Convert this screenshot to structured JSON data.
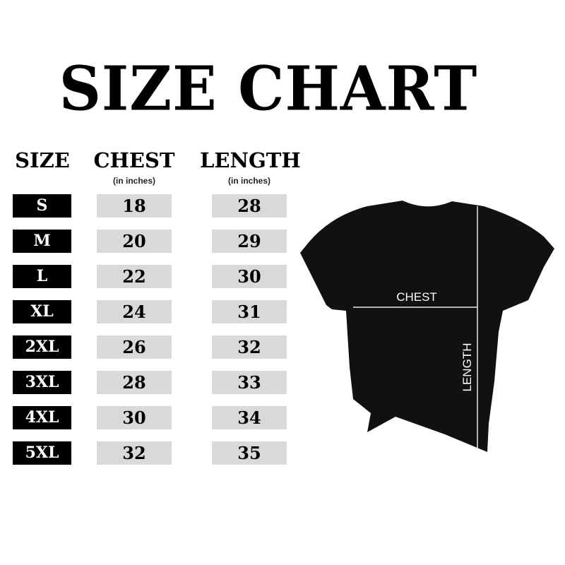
{
  "title": "SIZE CHART",
  "headers": {
    "size": "SIZE",
    "chest": "CHEST",
    "chest_unit": "(in inches)",
    "length": "LENGTH",
    "length_unit": "(in inches)"
  },
  "rows": [
    {
      "size": "S",
      "chest": "18",
      "length": "28"
    },
    {
      "size": "M",
      "chest": "20",
      "length": "29"
    },
    {
      "size": "L",
      "chest": "22",
      "length": "30"
    },
    {
      "size": "XL",
      "chest": "24",
      "length": "31"
    },
    {
      "size": "2XL",
      "chest": "26",
      "length": "32"
    },
    {
      "size": "3XL",
      "chest": "28",
      "length": "33"
    },
    {
      "size": "4XL",
      "chest": "30",
      "length": "34"
    },
    {
      "size": "5XL",
      "chest": "32",
      "length": "35"
    }
  ],
  "diagram": {
    "chest_label": "CHEST",
    "length_label": "LENGTH"
  },
  "colors": {
    "size_cell": "#000000",
    "value_cell": "#d9d9d9",
    "shirt": "#111111"
  }
}
